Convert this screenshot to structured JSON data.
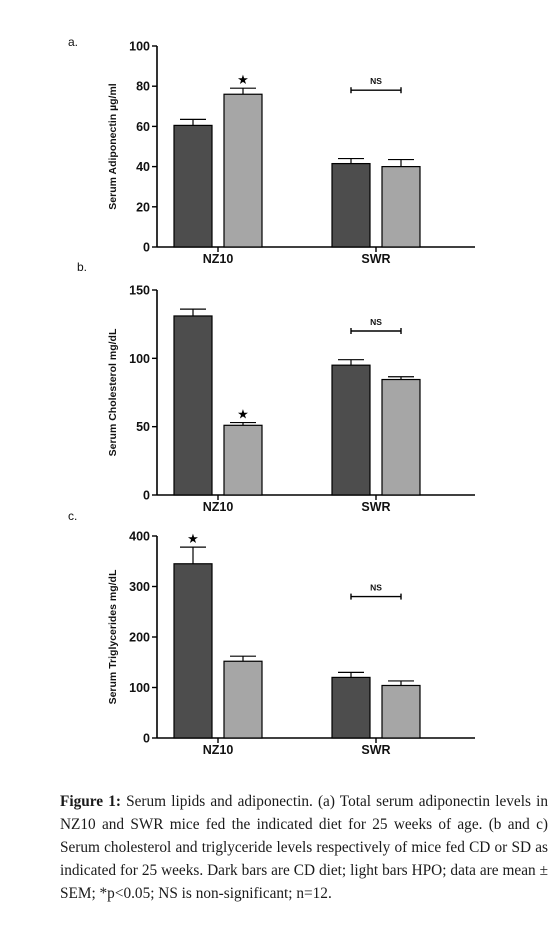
{
  "chart_data": [
    {
      "type": "bar",
      "panel_label": "a.",
      "categories": [
        "NZ10",
        "SWR"
      ],
      "ylabel": "Serum Adiponectin µg/ml",
      "ylim": [
        0,
        100
      ],
      "yticks": [
        "0",
        "20",
        "40",
        "60",
        "80",
        "100"
      ],
      "series": [
        {
          "values": [
            60.5,
            41.5
          ],
          "errors": [
            3,
            2.5
          ],
          "color": "#4d4d4d"
        },
        {
          "values": [
            76,
            40
          ],
          "errors": [
            3,
            3.5
          ],
          "color": "#a6a6a6"
        }
      ],
      "annotations": {
        "star": "★",
        "bracket_label": "NS"
      }
    },
    {
      "type": "bar",
      "panel_label": "b.",
      "categories": [
        "NZ10",
        "SWR"
      ],
      "ylabel": "Serum Cholesterol mg/dL",
      "ylim": [
        0,
        150
      ],
      "yticks": [
        "0",
        "50",
        "100",
        "150"
      ],
      "series": [
        {
          "values": [
            131,
            95
          ],
          "errors": [
            5,
            4
          ],
          "color": "#4d4d4d"
        },
        {
          "values": [
            51,
            84.5
          ],
          "errors": [
            2,
            2
          ],
          "color": "#a6a6a6"
        }
      ],
      "annotations": {
        "star": "★",
        "bracket_label": "NS"
      }
    },
    {
      "type": "bar",
      "panel_label": "c.",
      "categories": [
        "NZ10",
        "SWR"
      ],
      "ylabel": "Serum Triglycerides mg/dL",
      "ylim": [
        0,
        400
      ],
      "yticks": [
        "0",
        "100",
        "200",
        "300",
        "400"
      ],
      "series": [
        {
          "values": [
            345,
            120
          ],
          "errors": [
            33,
            10
          ],
          "color": "#4d4d4d"
        },
        {
          "values": [
            152,
            104
          ],
          "errors": [
            10,
            9
          ],
          "color": "#a6a6a6"
        }
      ],
      "annotations": {
        "star": "★",
        "bracket_label": "NS"
      }
    }
  ],
  "caption": {
    "label": "Figure 1:",
    "text": " Serum lipids and adiponectin. (a) Total serum adiponectin levels in NZ10 and SWR mice fed the indicated diet for 25 weeks of age. (b and c) Serum cholesterol and triglyceride levels respectively of mice fed CD or SD as indicated for 25 weeks. Dark bars are CD diet; light bars HPO; data are mean ± SEM; *p<0.05; NS is non-significant; n=12."
  }
}
